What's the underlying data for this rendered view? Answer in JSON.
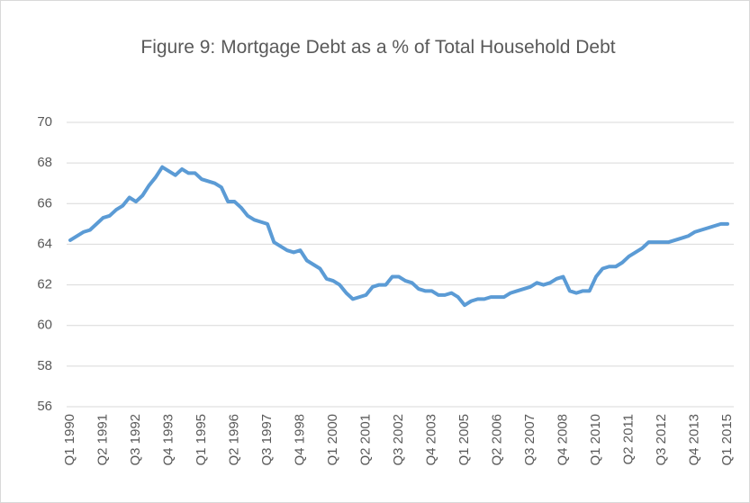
{
  "chart_data": {
    "type": "line",
    "title": "Figure 9: Mortgage Debt as a % of Total Household Debt",
    "categories": [
      "Q1 1990",
      null,
      null,
      null,
      null,
      "Q2 1991",
      null,
      null,
      null,
      null,
      "Q3 1992",
      null,
      null,
      null,
      null,
      "Q4 1993",
      null,
      null,
      null,
      null,
      "Q1 1995",
      null,
      null,
      null,
      null,
      "Q2 1996",
      null,
      null,
      null,
      null,
      "Q3 1997",
      null,
      null,
      null,
      null,
      "Q4 1998",
      null,
      null,
      null,
      null,
      "Q1 2000",
      null,
      null,
      null,
      null,
      "Q2 2001",
      null,
      null,
      null,
      null,
      "Q3 2002",
      null,
      null,
      null,
      null,
      "Q4 2003",
      null,
      null,
      null,
      null,
      "Q1 2005",
      null,
      null,
      null,
      null,
      "Q2 2006",
      null,
      null,
      null,
      null,
      "Q3 2007",
      null,
      null,
      null,
      null,
      "Q4 2008",
      null,
      null,
      null,
      null,
      "Q1 2010",
      null,
      null,
      null,
      null,
      "Q2 2011",
      null,
      null,
      null,
      null,
      "Q3 2012",
      null,
      null,
      null,
      null,
      "Q4 2013",
      null,
      null,
      null,
      null,
      "Q1 2015"
    ],
    "values": [
      64.2,
      64.4,
      64.6,
      64.7,
      65.0,
      65.3,
      65.4,
      65.7,
      65.9,
      66.3,
      66.1,
      66.4,
      66.9,
      67.3,
      67.8,
      67.6,
      67.4,
      67.7,
      67.5,
      67.5,
      67.2,
      67.1,
      67.0,
      66.8,
      66.1,
      66.1,
      65.8,
      65.4,
      65.2,
      65.1,
      65.0,
      64.1,
      63.9,
      63.7,
      63.6,
      63.7,
      63.2,
      63.0,
      62.8,
      62.3,
      62.2,
      62.0,
      61.6,
      61.3,
      61.4,
      61.5,
      61.9,
      62.0,
      62.0,
      62.4,
      62.4,
      62.2,
      62.1,
      61.8,
      61.7,
      61.7,
      61.5,
      61.5,
      61.6,
      61.4,
      61.0,
      61.2,
      61.3,
      61.3,
      61.4,
      61.4,
      61.4,
      61.6,
      61.7,
      61.8,
      61.9,
      62.1,
      62.0,
      62.1,
      62.3,
      62.4,
      61.7,
      61.6,
      61.7,
      61.7,
      62.4,
      62.8,
      62.9,
      62.9,
      63.1,
      63.4,
      63.6,
      63.8,
      64.1,
      64.1,
      64.1,
      64.1,
      64.2,
      64.3,
      64.4,
      64.6,
      64.7,
      64.8,
      64.9,
      65.0,
      65.0
    ],
    "color": "#5b9bd5",
    "ylim": [
      56,
      70
    ],
    "yticks": [
      56,
      58,
      60,
      62,
      64,
      66,
      68,
      70
    ],
    "grid": true
  }
}
